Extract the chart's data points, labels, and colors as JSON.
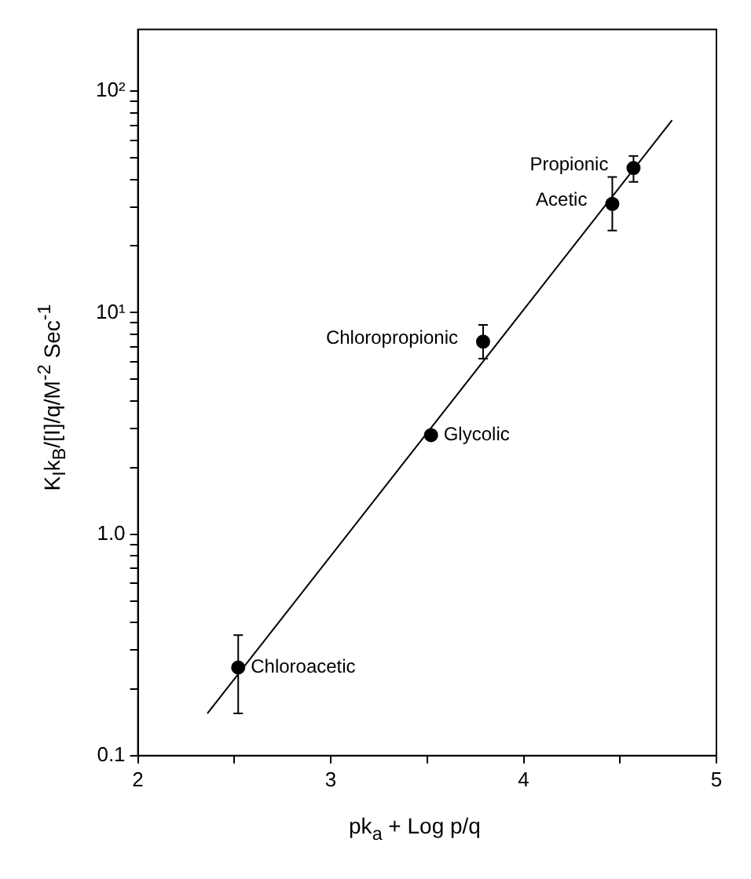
{
  "chart_data": {
    "type": "scatter",
    "xlabel": "pk$_{a}$ + Log p/q",
    "ylabel": "K$_{I}$k$_{B}$/[I]/q/M$^{-2}$ Sec$^{-1}$",
    "xlim": [
      2,
      5
    ],
    "ylim": [
      0.1,
      190
    ],
    "log": "y",
    "grid": false,
    "legend": false,
    "marker": "circle",
    "xticks": [
      2,
      {
        "value": 2.5,
        "label": null
      },
      3,
      {
        "value": 3.5,
        "label": null
      },
      4,
      {
        "value": 4.5,
        "label": null
      },
      5
    ],
    "yticks": [
      {
        "value": 0.1,
        "label": "0.1"
      },
      {
        "value": 0.2,
        "label": null
      },
      {
        "value": 0.3,
        "label": null
      },
      {
        "value": 0.4,
        "label": null
      },
      {
        "value": 0.5,
        "label": null
      },
      {
        "value": 0.6,
        "label": null
      },
      {
        "value": 0.7,
        "label": null
      },
      {
        "value": 0.8,
        "label": null
      },
      {
        "value": 0.9,
        "label": null
      },
      {
        "value": 1,
        "label": "1.0"
      },
      {
        "value": 2,
        "label": null
      },
      {
        "value": 3,
        "label": null
      },
      {
        "value": 4,
        "label": null
      },
      {
        "value": 5,
        "label": null
      },
      {
        "value": 6,
        "label": null
      },
      {
        "value": 7,
        "label": null
      },
      {
        "value": 8,
        "label": null
      },
      {
        "value": 9,
        "label": null
      },
      {
        "value": 10,
        "label": "10¹"
      },
      {
        "value": 20,
        "label": null
      },
      {
        "value": 30,
        "label": null
      },
      {
        "value": 40,
        "label": null
      },
      {
        "value": 50,
        "label": null
      },
      {
        "value": 60,
        "label": null
      },
      {
        "value": 70,
        "label": null
      },
      {
        "value": 80,
        "label": null
      },
      {
        "value": 90,
        "label": null
      },
      {
        "value": 100,
        "label": "10²"
      }
    ],
    "series": [
      {
        "color": "#000000",
        "x": [
          2.52,
          3.52,
          3.79,
          4.46,
          4.57
        ],
        "values": [
          0.25,
          2.8,
          7.4,
          31,
          45
        ],
        "errors": [
          [
            0.155,
            0.35
          ],
          null,
          [
            6.2,
            8.8
          ],
          [
            23.5,
            41
          ],
          [
            39,
            51
          ]
        ]
      },
      {
        "type": "line",
        "color": "#000000",
        "marker": "none",
        "x": [
          2.36,
          4.77
        ],
        "values": [
          0.155,
          74
        ]
      }
    ],
    "annotations": [
      {
        "text": "Chloroacetic",
        "x": 2.52,
        "y": 0.25
      },
      {
        "text": "Glycolic",
        "x": 3.52,
        "y": 2.8
      },
      {
        "text": "Chloropropionic",
        "x": 3.79,
        "y": 7.4
      },
      {
        "text": "Acetic",
        "x": 4.46,
        "y": 31
      },
      {
        "text": "Propionic",
        "x": 4.57,
        "y": 45
      }
    ]
  }
}
